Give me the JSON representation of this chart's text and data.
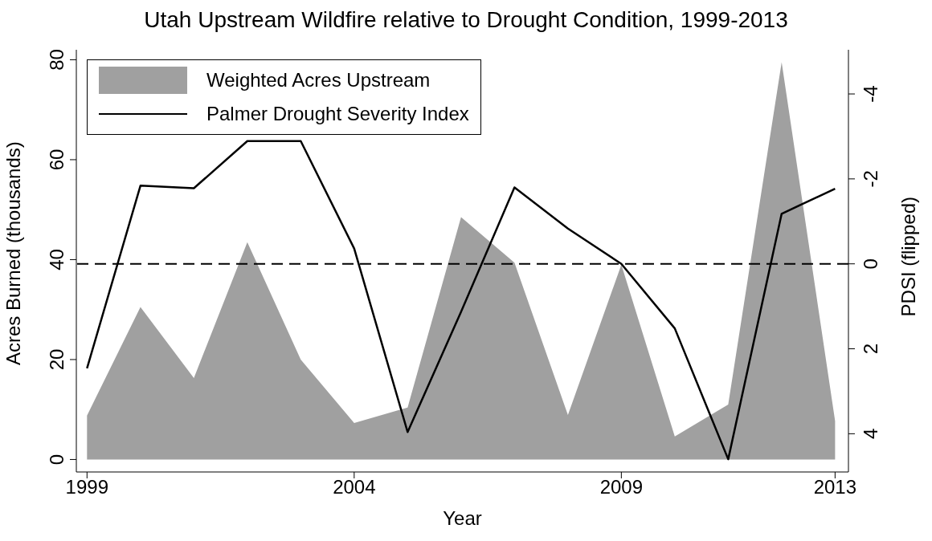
{
  "chart_data": {
    "type": "area",
    "title": "Utah Upstream Wildfire relative to Drought Condition, 1999-2013",
    "xlabel": "Year",
    "ylabel": "Acres Burned (thousands)",
    "y2label": "PDSI (flipped)",
    "x": [
      1999,
      2000,
      2001,
      2002,
      2003,
      2004,
      2005,
      2006,
      2007,
      2008,
      2009,
      2010,
      2011,
      2012,
      2013
    ],
    "series": [
      {
        "name": "Weighted Acres Upstream",
        "color": "#a0a0a0",
        "values": [
          8.8,
          30.5,
          16.3,
          43.5,
          20,
          7.3,
          10.4,
          48.5,
          39.4,
          8.9,
          39,
          4.6,
          11,
          79.5,
          7.7
        ]
      },
      {
        "name": "Palmer Drought Severity Index",
        "type": "line",
        "axis": "y2",
        "color": "#000000",
        "values": [
          2.46,
          -1.84,
          -1.78,
          -2.89,
          -2.89,
          -0.36,
          3.96,
          1.13,
          -1.8,
          -0.83,
          0,
          1.52,
          4.6,
          -1.18,
          -1.77
        ]
      }
    ],
    "xlim": [
      1998.8,
      2013.25
    ],
    "xticks": [
      1999,
      2004,
      2009,
      2013
    ],
    "ylim": [
      -2.5,
      82
    ],
    "yticks": [
      0,
      20,
      40,
      60,
      80
    ],
    "y2lim": [
      4.9,
      -5.04
    ],
    "y2ticks": [
      4,
      2,
      0,
      -2,
      -4
    ],
    "ref_lines": [
      {
        "axis": "y2",
        "value": 0,
        "color": "#000000",
        "line_style": "dashed"
      }
    ],
    "grid": false,
    "legend": "top left",
    "marker": "none",
    "line_style": "solid"
  }
}
